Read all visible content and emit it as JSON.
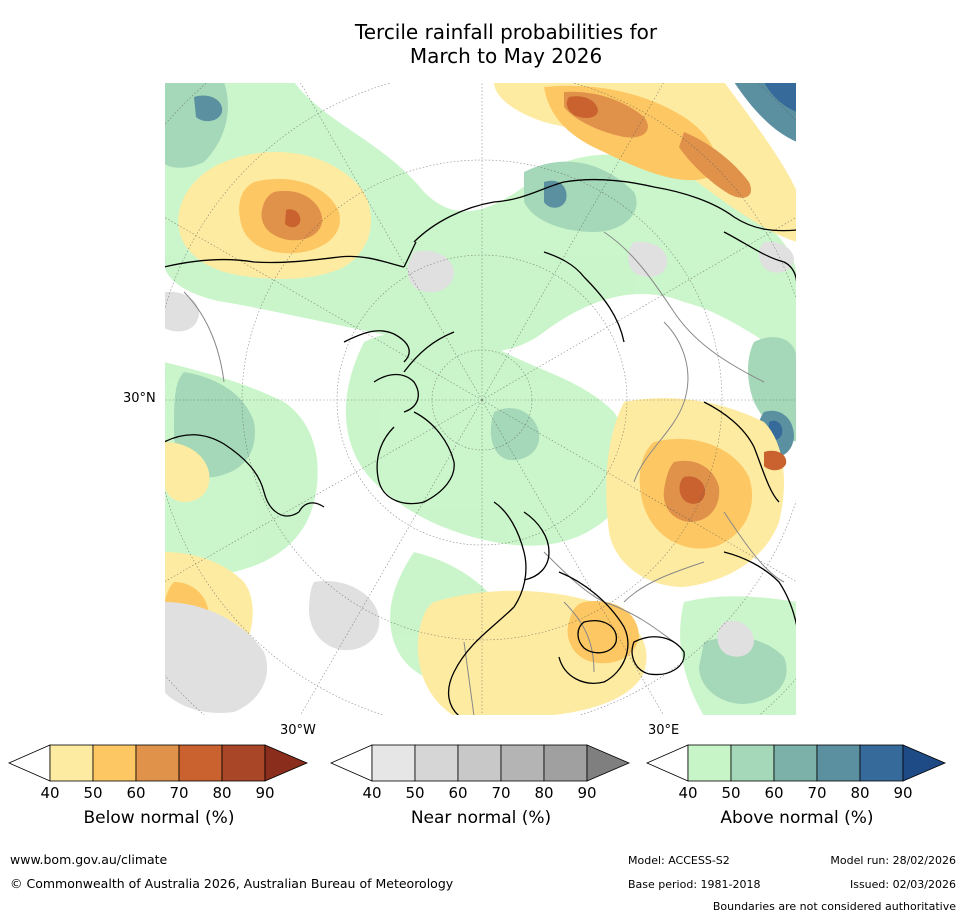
{
  "title": {
    "line1": "Tercile rainfall probabilities for",
    "line2": "March to May 2026"
  },
  "map": {
    "lat_label": "30°N",
    "lon_labels": [
      "30°W",
      "30°E"
    ],
    "colors": {
      "ocean": "#ffffff",
      "coast": "#000000",
      "border": "#888888",
      "grid": "#555555"
    }
  },
  "colorbars": [
    {
      "label": "Below normal (%)",
      "ticks": [
        "40",
        "50",
        "60",
        "70",
        "80",
        "90"
      ],
      "colors": [
        "#ffffff",
        "#feeba2",
        "#fdc863",
        "#e0924b",
        "#c9622f",
        "#a94627",
        "#8a2d1c"
      ]
    },
    {
      "label": "Near normal (%)",
      "ticks": [
        "40",
        "50",
        "60",
        "70",
        "80",
        "90"
      ],
      "colors": [
        "#ffffff",
        "#e6e6e6",
        "#d6d6d6",
        "#c8c8c8",
        "#b4b4b4",
        "#a0a0a0",
        "#7f7f7f"
      ]
    },
    {
      "label": "Above normal (%)",
      "ticks": [
        "40",
        "50",
        "60",
        "70",
        "80",
        "90"
      ],
      "colors": [
        "#ffffff",
        "#c8f5c8",
        "#a5d8b8",
        "#7cb1a9",
        "#5b90a1",
        "#356a9a",
        "#1e4b85"
      ]
    }
  ],
  "footer": {
    "url": "www.bom.gov.au/climate",
    "copyright": "© Commonwealth of Australia 2026, Australian Bureau of Meteorology",
    "model": "Model: ACCESS-S2",
    "base_period": "Base period: 1981-2018",
    "model_run": "Model run: 28/02/2026",
    "issued": "Issued: 02/03/2026",
    "disclaimer": "Boundaries are not considered authoritative"
  }
}
